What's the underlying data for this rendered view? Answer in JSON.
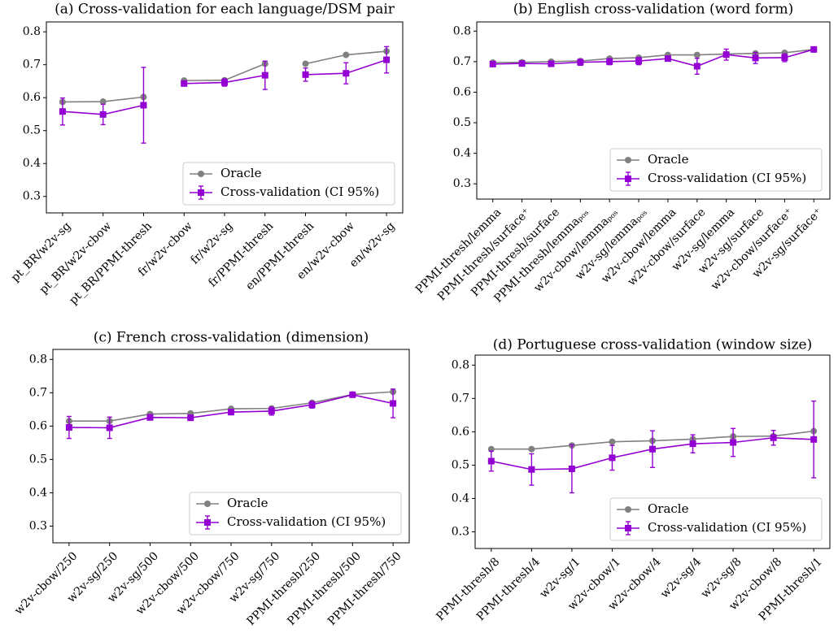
{
  "chart_data": [
    {
      "type": "line",
      "title": "(a) Cross-validation for each language/DSM pair",
      "categories": [
        "pt_BR/w2v-sg",
        "pt_BR/w2v-cbow",
        "pt_BR/PPMI-thresh",
        "fr/w2v-cbow",
        "fr/w2v-sg",
        "fr/PPMI-thresh",
        "en/PPMI-thresh",
        "en/w2v-cbow",
        "en/w2v-sg"
      ],
      "series": [
        {
          "name": "Oracle",
          "color": "#808080",
          "marker": "circle",
          "values": [
            0.587,
            0.588,
            0.602,
            0.652,
            0.653,
            0.703,
            0.703,
            0.73,
            0.741
          ]
        },
        {
          "name": "Cross-validation (CI 95%)",
          "color": "#9400d3",
          "marker": "square",
          "values": [
            0.558,
            0.549,
            0.577,
            0.643,
            0.646,
            0.668,
            0.67,
            0.674,
            0.715
          ],
          "errors": [
            0.041,
            0.031,
            0.115,
            0.006,
            0.011,
            0.043,
            0.02,
            0.032,
            0.04
          ]
        }
      ],
      "line_breaks": [
        2,
        5
      ],
      "ylim": [
        0.25,
        0.83
      ],
      "yticks": [
        0.3,
        0.4,
        0.5,
        0.6,
        0.7,
        0.8
      ],
      "legend": "lower right"
    },
    {
      "type": "line",
      "title": "(b) English cross-validation (word form)",
      "categories": [
        "PPMI-thresh/lemma",
        "PPMI-thresh/surface⁺",
        "PPMI-thresh/surface",
        "PPMI-thresh/lemmaₚₒₛ",
        "w2v-cbow/lemmaₚₒₛ",
        "w2v-sg/lemmaₚₒₛ",
        "w2v-cbow/lemma",
        "w2v-cbow/surface",
        "w2v-sg/lemma",
        "w2v-sg/surface",
        "w2v-cbow/surface⁺",
        "w2v-sg/surface⁺"
      ],
      "series": [
        {
          "name": "Oracle",
          "color": "#808080",
          "marker": "circle",
          "values": [
            0.697,
            0.698,
            0.7,
            0.702,
            0.71,
            0.713,
            0.722,
            0.722,
            0.725,
            0.727,
            0.729,
            0.74
          ]
        },
        {
          "name": "Cross-validation (CI 95%)",
          "color": "#9400d3",
          "marker": "square",
          "values": [
            0.692,
            0.694,
            0.693,
            0.698,
            0.7,
            0.702,
            0.71,
            0.685,
            0.723,
            0.712,
            0.713,
            0.74
          ],
          "errors": [
            0.005,
            0.006,
            0.008,
            0.01,
            0.01,
            0.012,
            0.008,
            0.026,
            0.018,
            0.018,
            0.013,
            0.005
          ]
        }
      ],
      "ylim": [
        0.25,
        0.83
      ],
      "yticks": [
        0.3,
        0.4,
        0.5,
        0.6,
        0.7,
        0.8
      ],
      "legend": "lower right"
    },
    {
      "type": "line",
      "title": "(c) French cross-validation (dimension)",
      "categories": [
        "w2v-cbow/250",
        "w2v-sg/250",
        "w2v-sg/500",
        "w2v-cbow/500",
        "w2v-cbow/750",
        "w2v-sg/750",
        "PPMI-thresh/250",
        "PPMI-thresh/500",
        "PPMI-thresh/750"
      ],
      "series": [
        {
          "name": "Oracle",
          "color": "#808080",
          "marker": "circle",
          "values": [
            0.615,
            0.615,
            0.636,
            0.638,
            0.652,
            0.653,
            0.67,
            0.695,
            0.703
          ]
        },
        {
          "name": "Cross-validation (CI 95%)",
          "color": "#9400d3",
          "marker": "square",
          "values": [
            0.596,
            0.595,
            0.626,
            0.625,
            0.642,
            0.645,
            0.664,
            0.694,
            0.668
          ],
          "errors": [
            0.033,
            0.032,
            0.008,
            0.008,
            0.008,
            0.012,
            0.01,
            0.005,
            0.043
          ]
        }
      ],
      "ylim": [
        0.25,
        0.83
      ],
      "yticks": [
        0.3,
        0.4,
        0.5,
        0.6,
        0.7,
        0.8
      ],
      "legend": "lower right"
    },
    {
      "type": "line",
      "title": "(d) Portuguese cross-validation (window size)",
      "categories": [
        "PPMI-thresh/8",
        "PPMI-thresh/4",
        "w2v-sg/1",
        "w2v-cbow/1",
        "w2v-cbow/4",
        "w2v-sg/4",
        "w2v-sg/8",
        "w2v-cbow/8",
        "PPMI-thresh/1"
      ],
      "series": [
        {
          "name": "Oracle",
          "color": "#808080",
          "marker": "circle",
          "values": [
            0.548,
            0.548,
            0.559,
            0.57,
            0.573,
            0.578,
            0.586,
            0.587,
            0.602
          ]
        },
        {
          "name": "Cross-validation (CI 95%)",
          "color": "#9400d3",
          "marker": "square",
          "values": [
            0.512,
            0.487,
            0.489,
            0.522,
            0.548,
            0.564,
            0.568,
            0.582,
            0.577
          ],
          "errors": [
            0.03,
            0.047,
            0.072,
            0.037,
            0.055,
            0.027,
            0.042,
            0.022,
            0.115
          ]
        }
      ],
      "ylim": [
        0.25,
        0.83
      ],
      "yticks": [
        0.3,
        0.4,
        0.5,
        0.6,
        0.7,
        0.8
      ],
      "legend": "lower right"
    }
  ]
}
